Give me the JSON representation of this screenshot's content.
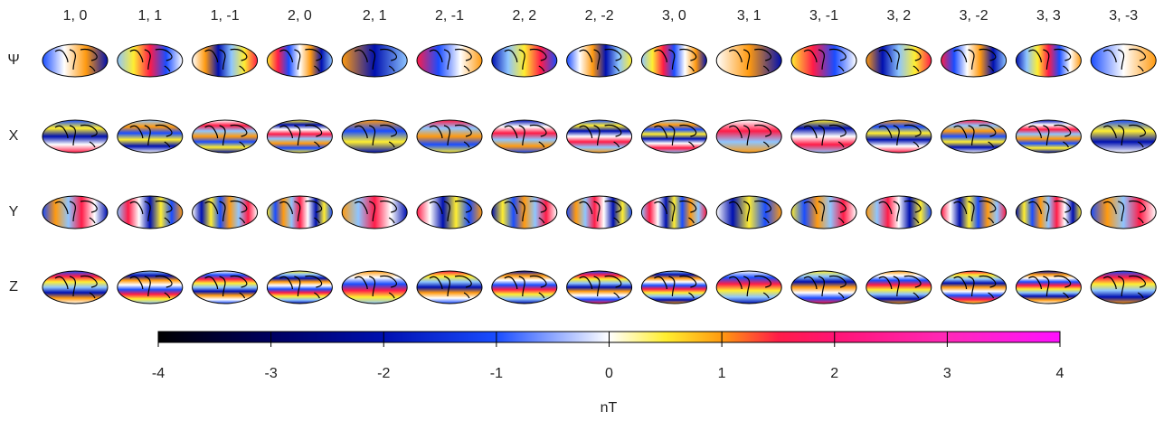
{
  "chart_data": {
    "type": "map-grid",
    "columns": [
      "1, 0",
      "1, 1",
      "1, -1",
      "2, 0",
      "2, 1",
      "2, -1",
      "2, 2",
      "2, -2",
      "3, 0",
      "3, 1",
      "3, -1",
      "3, 2",
      "3, -2",
      "3, 3",
      "3, -3"
    ],
    "rows": [
      "Ψ",
      "X",
      "Y",
      "Z"
    ],
    "colorbar": {
      "label": "nT",
      "xlim": [
        -4,
        4
      ],
      "xticks": [
        -4,
        -3,
        -2,
        -1,
        0,
        1,
        2,
        3,
        4
      ],
      "colormap": [
        {
          "value": -4,
          "color": "#000000"
        },
        {
          "value": -3,
          "color": "#000060"
        },
        {
          "value": -2,
          "color": "#0010b0"
        },
        {
          "value": -1,
          "color": "#1a4dff"
        },
        {
          "value": 0,
          "color": "#ffffff"
        },
        {
          "value": 0.5,
          "color": "#ffee30"
        },
        {
          "value": 1,
          "color": "#ff9a10"
        },
        {
          "value": 1.5,
          "color": "#ff1c48"
        },
        {
          "value": 2,
          "color": "#ff1474"
        },
        {
          "value": 3,
          "color": "#ff28b8"
        },
        {
          "value": 4,
          "color": "#ff10ff"
        }
      ]
    }
  }
}
